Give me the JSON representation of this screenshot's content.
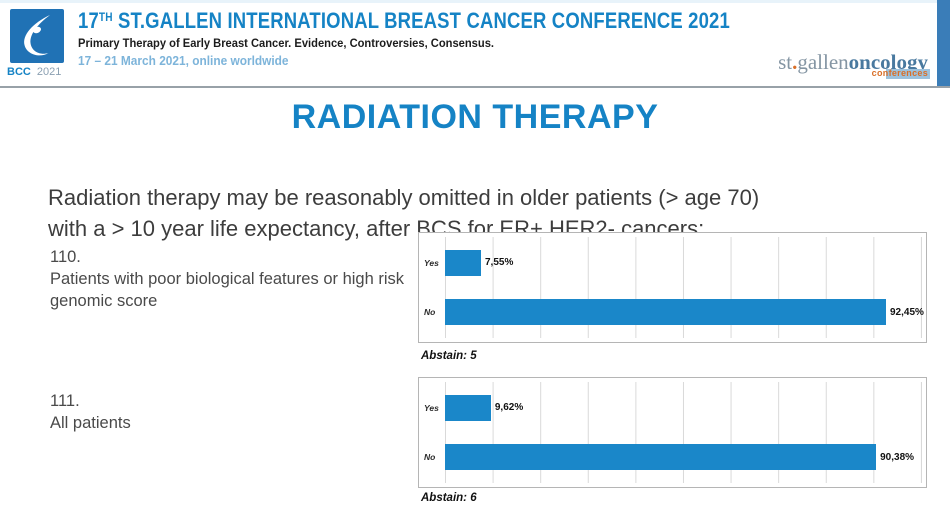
{
  "colors": {
    "conference_blue": "#1583c5",
    "bar_blue": "#1a87c9",
    "brand_orange": "#d96f28",
    "logo_square_blue": "#2072b5"
  },
  "header": {
    "logo": {
      "icon": "bcc-drop-logo",
      "text_bcc": "BCC",
      "text_year": "2021"
    },
    "title": {
      "num": "17",
      "sup": "TH",
      "rest": " ST.GALLEN INTERNATIONAL BREAST CANCER CONFERENCE 2021"
    },
    "subtitle": "Primary Therapy of Early Breast Cancer. Evidence, Controversies, Consensus.",
    "dates": "17 – 21 March 2021, online worldwide",
    "brand": {
      "st": "st",
      "dot": ".",
      "gallen": "gallen",
      "oncology": "oncology",
      "conferences": "conferences"
    }
  },
  "slide": {
    "title": "RADIATION THERAPY",
    "question": [
      "Radiation therapy may be reasonably omitted in older patients (> age 70)",
      "with a > 10 year life expectancy, after BCS for ER+ HER2- cancers:"
    ]
  },
  "polls": [
    {
      "number": "110.",
      "label": "Patients with poor biological features or high risk genomic score",
      "abstain": "Abstain: 5"
    },
    {
      "number": "111.",
      "label": "All patients",
      "abstain": "Abstain: 6"
    }
  ],
  "chart_data": [
    {
      "type": "bar",
      "orientation": "horizontal",
      "title": "110. Patients with poor biological features or high risk genomic score",
      "categories": [
        "Yes",
        "No"
      ],
      "values": [
        7.55,
        92.45
      ],
      "value_labels": [
        "7,55%",
        "92,45%"
      ],
      "abstain": 5,
      "xlim": [
        0,
        100
      ],
      "grid": true,
      "legend": false,
      "bar_color": "#1a87c9"
    },
    {
      "type": "bar",
      "orientation": "horizontal",
      "title": "111. All patients",
      "categories": [
        "Yes",
        "No"
      ],
      "values": [
        9.62,
        90.38
      ],
      "value_labels": [
        "9,62%",
        "90,38%"
      ],
      "abstain": 6,
      "xlim": [
        0,
        100
      ],
      "grid": true,
      "legend": false,
      "bar_color": "#1a87c9"
    }
  ]
}
